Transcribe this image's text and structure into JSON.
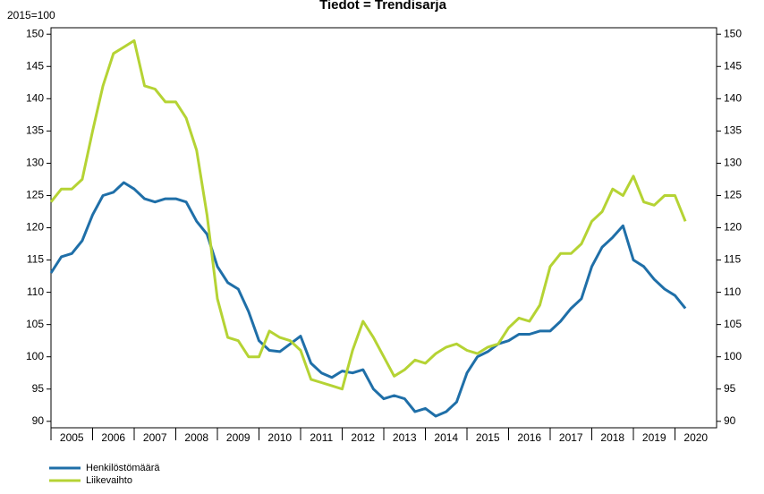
{
  "chart_data": {
    "type": "line",
    "title": "Tiedot = Trendisarja",
    "y_label": "2015=100",
    "x": [
      2005,
      2005.25,
      2005.5,
      2005.75,
      2006,
      2006.25,
      2006.5,
      2006.75,
      2007,
      2007.25,
      2007.5,
      2007.75,
      2008,
      2008.25,
      2008.5,
      2008.75,
      2009,
      2009.25,
      2009.5,
      2009.75,
      2010,
      2010.25,
      2010.5,
      2010.75,
      2011,
      2011.25,
      2011.5,
      2011.75,
      2012,
      2012.25,
      2012.5,
      2012.75,
      2013,
      2013.25,
      2013.5,
      2013.75,
      2014,
      2014.25,
      2014.5,
      2014.75,
      2015,
      2015.25,
      2015.5,
      2015.75,
      2016,
      2016.25,
      2016.5,
      2016.75,
      2017,
      2017.25,
      2017.5,
      2017.75,
      2018,
      2018.25,
      2018.5,
      2018.75,
      2019,
      2019.25,
      2019.5,
      2019.75,
      2020,
      2020.25
    ],
    "series": [
      {
        "name": "Henkilöstömäärä",
        "color": "#1f6fa8",
        "values": [
          113,
          115.5,
          116,
          118,
          122,
          125,
          125.5,
          127,
          126,
          124.5,
          124,
          124.5,
          124.5,
          124,
          121,
          119,
          114,
          111.5,
          110.5,
          107,
          102.5,
          101,
          100.8,
          102,
          103.2,
          99,
          97.5,
          96.8,
          97.8,
          97.5,
          98,
          95,
          93.5,
          94,
          93.5,
          91.5,
          92,
          90.8,
          91.5,
          93,
          97.5,
          100,
          100.8,
          102,
          102.5,
          103.5,
          103.5,
          104,
          104,
          105.5,
          107.5,
          109,
          114,
          117,
          118.5,
          120.3,
          115,
          114,
          112,
          110.5,
          109.5,
          107.5
        ]
      },
      {
        "name": "Liikevaihto",
        "color": "#b5d334",
        "values": [
          124,
          126,
          126,
          127.5,
          135,
          142,
          147,
          148,
          149,
          142,
          141.5,
          139.5,
          139.5,
          137,
          132,
          122,
          109,
          103,
          102.5,
          100,
          100,
          104,
          103,
          102.5,
          101,
          96.5,
          96,
          95.5,
          95,
          101,
          105.5,
          103,
          100,
          97,
          98,
          99.5,
          99,
          100.5,
          101.5,
          102,
          101,
          100.5,
          101.5,
          102,
          104.5,
          106,
          105.5,
          108,
          114,
          116,
          116,
          117.5,
          121,
          122.5,
          126,
          125,
          128,
          124,
          123.5,
          125,
          125,
          121
        ]
      }
    ],
    "xlim": [
      2005,
      2021
    ],
    "xticks": [
      {
        "value": 2005.5,
        "label": "2005"
      },
      {
        "value": 2006.5,
        "label": "2006"
      },
      {
        "value": 2007.5,
        "label": "2007"
      },
      {
        "value": 2008.5,
        "label": "2008"
      },
      {
        "value": 2009.5,
        "label": "2009"
      },
      {
        "value": 2010.5,
        "label": "2010"
      },
      {
        "value": 2011.5,
        "label": "2011"
      },
      {
        "value": 2012.5,
        "label": "2012"
      },
      {
        "value": 2013.5,
        "label": "2013"
      },
      {
        "value": 2014.5,
        "label": "2014"
      },
      {
        "value": 2015.5,
        "label": "2015"
      },
      {
        "value": 2016.5,
        "label": "2016"
      },
      {
        "value": 2017.5,
        "label": "2017"
      },
      {
        "value": 2018.5,
        "label": "2018"
      },
      {
        "value": 2019.5,
        "label": "2019"
      },
      {
        "value": 2020.5,
        "label": "2020"
      }
    ],
    "ylim": [
      89,
      151
    ],
    "yticks": [
      90,
      95,
      100,
      105,
      110,
      115,
      120,
      125,
      130,
      135,
      140,
      145,
      150
    ],
    "y2lim": [
      89,
      151
    ],
    "y2ticks": [
      90,
      95,
      100,
      105,
      110,
      115,
      120,
      125,
      130,
      135,
      140,
      145,
      150
    ],
    "legend": "bottom-left"
  }
}
